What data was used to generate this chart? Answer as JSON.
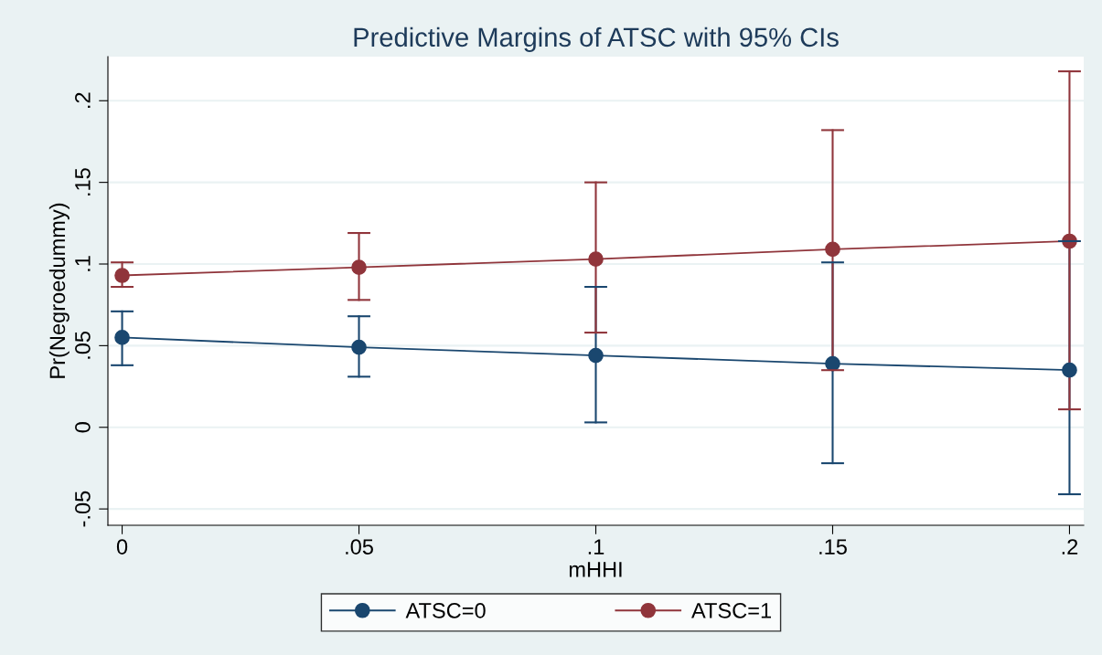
{
  "chart_data": {
    "type": "line",
    "title": "Predictive Margins of ATSC with 95% CIs",
    "xlabel": "mHHI",
    "ylabel": "Pr(Negroedummy)",
    "x": [
      0,
      0.05,
      0.1,
      0.15,
      0.2
    ],
    "series": [
      {
        "name": "ATSC=0",
        "color": "#1a476f",
        "values": [
          0.055,
          0.049,
          0.044,
          0.039,
          0.035
        ],
        "errors": [
          [
            0.038,
            0.071
          ],
          [
            0.031,
            0.068
          ],
          [
            0.003,
            0.086
          ],
          [
            -0.022,
            0.101
          ],
          [
            -0.041,
            0.114
          ]
        ]
      },
      {
        "name": "ATSC=1",
        "color": "#90353b",
        "values": [
          0.093,
          0.098,
          0.103,
          0.109,
          0.114
        ],
        "errors": [
          [
            0.086,
            0.101
          ],
          [
            0.078,
            0.119
          ],
          [
            0.058,
            0.15
          ],
          [
            0.035,
            0.182
          ],
          [
            0.011,
            0.218
          ]
        ]
      }
    ],
    "xlim": [
      -0.003,
      0.203
    ],
    "ylim": [
      -0.06,
      0.227
    ],
    "xticks": [
      0,
      {
        "value": 0.05,
        "label": ".05"
      },
      {
        "value": 0.1,
        "label": ".1"
      },
      {
        "value": 0.15,
        "label": ".15"
      },
      {
        "value": 0.2,
        "label": ".2"
      }
    ],
    "yticks": [
      {
        "value": -0.05,
        "label": "-.05"
      },
      0,
      {
        "value": 0.05,
        "label": ".05"
      },
      {
        "value": 0.1,
        "label": ".1"
      },
      {
        "value": 0.15,
        "label": ".15"
      },
      {
        "value": 0.2,
        "label": ".2"
      }
    ],
    "grid": "y",
    "legend": "bottom",
    "marker": "circle",
    "line_style": "solid"
  }
}
